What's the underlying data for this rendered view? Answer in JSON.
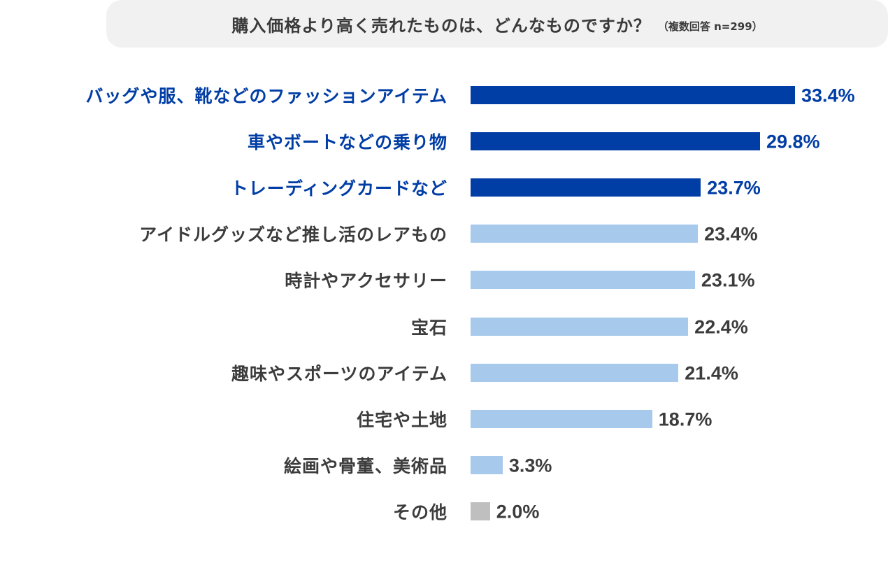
{
  "chart_data": {
    "type": "bar",
    "orientation": "horizontal",
    "title": "購入価格より高く売れたものは、どんなものですか？",
    "subtitle": "（複数回答 n=299）",
    "categories": [
      "バッグや服、靴などのファッションアイテム",
      "車やボートなどの乗り物",
      "トレーディングカードなど",
      "アイドルグッズなど推し活のレアもの",
      "時計やアクセサリー",
      "宝石",
      "趣味やスポーツのアイテム",
      "住宅や土地",
      "絵画や骨董、美術品",
      "その他"
    ],
    "values": [
      33.4,
      29.8,
      23.7,
      23.4,
      23.1,
      22.4,
      21.4,
      18.7,
      3.3,
      2.0
    ],
    "value_labels": [
      "33.4%",
      "29.8%",
      "23.7%",
      "23.4%",
      "23.1%",
      "22.4%",
      "21.4%",
      "18.7%",
      "3.3%",
      "2.0%"
    ],
    "highlight": [
      true,
      true,
      true,
      false,
      false,
      false,
      false,
      false,
      false,
      false
    ],
    "unit": "%",
    "colors": {
      "highlight": "#003da5",
      "normal": "#a6c9ec",
      "other": "#bfbfbf",
      "highlight_text": "#003da5",
      "text": "#3c3c3c"
    }
  }
}
